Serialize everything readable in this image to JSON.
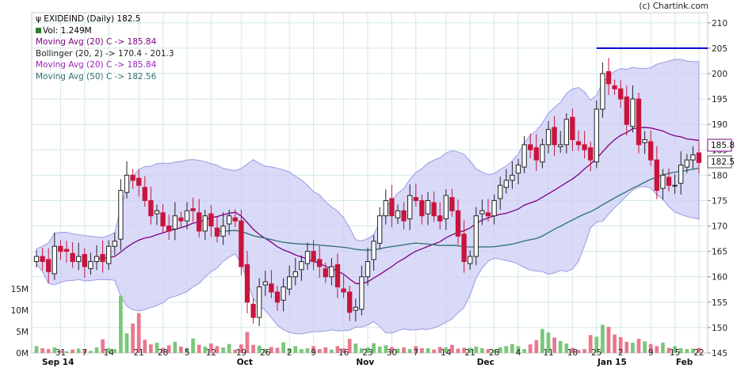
{
  "source_credit": "(c) Chartink.com",
  "legend": {
    "title": "EXIDEIND (Daily) 182.5",
    "volume": "Vol: 1.249M",
    "ma20_a": "Moving Avg (20) C -> 185.84",
    "bollinger": "Bollinger (20, 2) -> 170.4 - 201.3",
    "ma20_b": "Moving Avg (20) C -> 185.84",
    "ma50": "Moving Avg (50) C -> 182.56"
  },
  "colors": {
    "up": "#ffffff",
    "down": "#c8143c",
    "band_fill": "#ccccf5",
    "band_edge": "#9a9ae6",
    "ma20": "#800080",
    "ma50": "#2f6f6a",
    "trendline": "#0000cc",
    "vol_up": "#7ac77a",
    "vol_down": "#e8788e",
    "grid": "#d3e8e8"
  },
  "chart_data": {
    "type": "candlestick",
    "price_axis": {
      "min": 145,
      "max": 212,
      "ticks": [
        145,
        150,
        155,
        160,
        165,
        170,
        175,
        180,
        185,
        190,
        195,
        200,
        205,
        210
      ]
    },
    "volume_axis": {
      "ticks": [
        "0M",
        "5M",
        "10M",
        "15M"
      ],
      "max_m": 15
    },
    "x_day_labels": [
      "31",
      "7",
      "14",
      "21",
      "28",
      "5",
      "12",
      "19",
      "26",
      "2",
      "9",
      "16",
      "23",
      "30",
      "7",
      "14",
      "21",
      "28",
      "4",
      "11",
      "18",
      "25",
      "2",
      "9",
      "15",
      "22"
    ],
    "x_month_labels": [
      "Sep 14",
      "Oct",
      "Nov",
      "Dec",
      "Jan 15",
      "Feb"
    ],
    "last_price_label": "182.5",
    "ma20_last_label": "185.8",
    "trendline_value": 205,
    "ohlc_closes": [
      164,
      163,
      161,
      166,
      165,
      165,
      163,
      164,
      162,
      163,
      164,
      163,
      166,
      167,
      177,
      180,
      179,
      178,
      175,
      172,
      173,
      170,
      169,
      172,
      171,
      173,
      173,
      169,
      172,
      170,
      168,
      170,
      172,
      171,
      162,
      155,
      152,
      158,
      159,
      157,
      155,
      158,
      160,
      161,
      163,
      165,
      163,
      162,
      160,
      162,
      158,
      157,
      153,
      154,
      160,
      163,
      167,
      172,
      175,
      172,
      173,
      171,
      176,
      175,
      172,
      175,
      172,
      171,
      176,
      173,
      168,
      163,
      164,
      172,
      173,
      172,
      175,
      178,
      179,
      180,
      182,
      186,
      185,
      183,
      186,
      189,
      186,
      186,
      191,
      187,
      186,
      185,
      183,
      193,
      200,
      198,
      197,
      195,
      190,
      195,
      186,
      187,
      183,
      177,
      180,
      178,
      178,
      182,
      183,
      184,
      182.5
    ],
    "volume_m": [
      1.6,
      1.1,
      0.9,
      1.3,
      0.6,
      0.4,
      0.8,
      1.0,
      0.7,
      0.5,
      1.3,
      3.2,
      1.1,
      0.9,
      13.4,
      4.6,
      6.9,
      9.3,
      3.1,
      2.0,
      2.4,
      1.2,
      1.8,
      2.6,
      1.5,
      1.2,
      3.4,
      1.9,
      1.5,
      2.2,
      1.6,
      1.3,
      2.1,
      0.8,
      2.0,
      4.9,
      1.9,
      1.7,
      1.0,
      1.4,
      1.2,
      2.5,
      1.1,
      1.6,
      0.9,
      1.1,
      1.6,
      0.9,
      1.3,
      0.8,
      1.6,
      1.1,
      3.3,
      2.2,
      1.1,
      1.3,
      2.3,
      1.5,
      1.8,
      1.4,
      1.0,
      1.3,
      0.9,
      1.6,
      1.1,
      1.1,
      0.8,
      1.4,
      1.3,
      1.9,
      1.0,
      1.2,
      1.2,
      1.5,
      1.1,
      0.9,
      0.8,
      1.3,
      1.6,
      2.1,
      1.6,
      0.9,
      2.0,
      3.0,
      5.6,
      4.8,
      3.6,
      2.8,
      2.2,
      1.2,
      0.7,
      0.9,
      4.2,
      3.8,
      6.6,
      6.1,
      4.3,
      3.7,
      2.6,
      2.4,
      3.3,
      2.7,
      2.1,
      1.6,
      2.4,
      1.2,
      1.6,
      1.1,
      0.9,
      1.0,
      1.2
    ]
  }
}
